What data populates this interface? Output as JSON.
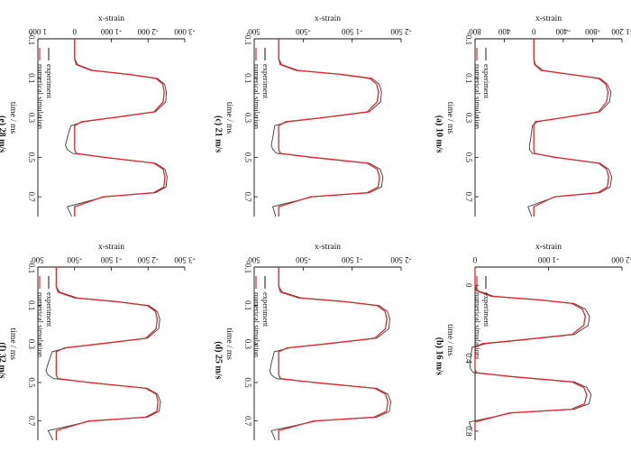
{
  "figure": {
    "colors": {
      "experiment": "#3a3a3a",
      "simulation": "#e0282e",
      "mesh": "#5a6fd0",
      "axis": "#111111"
    }
  },
  "chart_data": [
    {
      "type": "line",
      "caption": "(a) 10 m/s",
      "xlabel": "time / ms",
      "ylabel": "x-strain",
      "xlim": [
        -0.1,
        0.8
      ],
      "ylim": [
        -1200,
        800
      ],
      "xticks": [
        "-0.1",
        "0.1",
        "0.3",
        "0.5",
        "0.7"
      ],
      "xtickvals": [
        -0.1,
        0.1,
        0.3,
        0.5,
        0.7
      ],
      "yticks": [
        "-1 200",
        "-800",
        "-400",
        "0",
        "400",
        "800"
      ],
      "ytickvals": [
        -1200,
        -800,
        -400,
        0,
        400,
        800
      ],
      "legend": [
        "experiment",
        "numerical simulation"
      ],
      "legend_position": "top-right",
      "series": [
        {
          "name": "experiment",
          "role": "experiment",
          "x": [
            -0.1,
            0.0,
            0.03,
            0.06,
            0.08,
            0.1,
            0.13,
            0.17,
            0.22,
            0.27,
            0.3,
            0.32,
            0.34,
            0.4,
            0.44,
            0.46,
            0.48,
            0.5,
            0.53,
            0.56,
            0.6,
            0.65,
            0.68,
            0.7,
            0.75,
            0.8
          ],
          "y": [
            0,
            0,
            -20,
            -120,
            -500,
            -900,
            -1000,
            -1050,
            -1030,
            -900,
            -400,
            -50,
            20,
            40,
            60,
            60,
            20,
            -300,
            -900,
            -1020,
            -1060,
            -1040,
            -900,
            -300,
            80,
            30
          ]
        },
        {
          "name": "numerical simulation",
          "role": "simulation",
          "x": [
            -0.1,
            0.0,
            0.03,
            0.06,
            0.08,
            0.1,
            0.13,
            0.17,
            0.22,
            0.27,
            0.3,
            0.32,
            0.34,
            0.4,
            0.44,
            0.46,
            0.48,
            0.5,
            0.53,
            0.56,
            0.6,
            0.65,
            0.68,
            0.7,
            0.75,
            0.8
          ],
          "y": [
            0,
            0,
            -10,
            -100,
            -480,
            -880,
            -980,
            -1010,
            -990,
            -880,
            -380,
            -20,
            0,
            0,
            0,
            0,
            -10,
            -280,
            -880,
            -990,
            -1020,
            -1000,
            -870,
            -280,
            0,
            0
          ]
        }
      ]
    },
    {
      "type": "line",
      "caption": "(b) 16 m/s",
      "xlabel": "time / ms",
      "ylabel": "x-strain",
      "xlim": [
        -0.1,
        0.85
      ],
      "ylim": [
        -2000,
        0
      ],
      "xticks": [
        "0",
        "0.4",
        "0.8"
      ],
      "xtickvals": [
        0,
        0.4,
        0.8
      ],
      "yticks": [
        "-2 000",
        "-1 000",
        "0"
      ],
      "ytickvals": [
        -2000,
        -1000,
        0
      ],
      "legend": [
        "experiment",
        "numerical simulation"
      ],
      "legend_position": "top-right",
      "series": [
        {
          "name": "experiment",
          "role": "experiment",
          "x": [
            -0.1,
            0.0,
            0.03,
            0.06,
            0.08,
            0.1,
            0.13,
            0.17,
            0.22,
            0.27,
            0.3,
            0.32,
            0.34,
            0.4,
            0.44,
            0.46,
            0.48,
            0.5,
            0.53,
            0.56,
            0.6,
            0.65,
            0.68,
            0.7,
            0.75,
            0.8
          ],
          "y": [
            0,
            0,
            -40,
            -250,
            -900,
            -1350,
            -1500,
            -1560,
            -1540,
            -1350,
            -650,
            -150,
            40,
            60,
            70,
            60,
            20,
            -500,
            -1350,
            -1520,
            -1580,
            -1550,
            -1350,
            -500,
            80,
            40
          ]
        },
        {
          "name": "numerical simulation",
          "role": "simulation",
          "x": [
            -0.1,
            0.0,
            0.03,
            0.06,
            0.08,
            0.1,
            0.13,
            0.17,
            0.22,
            0.27,
            0.3,
            0.32,
            0.34,
            0.4,
            0.44,
            0.46,
            0.48,
            0.5,
            0.53,
            0.56,
            0.6,
            0.65,
            0.68,
            0.7,
            0.75,
            0.8
          ],
          "y": [
            0,
            0,
            -20,
            -220,
            -860,
            -1320,
            -1460,
            -1500,
            -1480,
            -1320,
            -620,
            -100,
            0,
            0,
            0,
            0,
            -20,
            -480,
            -1320,
            -1480,
            -1520,
            -1490,
            -1310,
            -470,
            0,
            0
          ]
        }
      ]
    },
    {
      "type": "line",
      "caption": "(c) 21 m/s",
      "xlabel": "time / ms",
      "ylabel": "x-strain",
      "xlim": [
        -0.1,
        0.8
      ],
      "ylim": [
        -2500,
        500
      ],
      "xticks": [
        "-0.1",
        "0.1",
        "0.3",
        "0.5",
        "0.7"
      ],
      "xtickvals": [
        -0.1,
        0.1,
        0.3,
        0.5,
        0.7
      ],
      "yticks": [
        "-2 500",
        "-1 500",
        "-500",
        "500"
      ],
      "ytickvals": [
        -2500,
        -1500,
        -500,
        500
      ],
      "legend": [
        "experiment",
        "numerical simulation"
      ],
      "legend_position": "top-right",
      "series": [
        {
          "name": "experiment",
          "role": "experiment",
          "x": [
            -0.1,
            0.0,
            0.03,
            0.06,
            0.08,
            0.1,
            0.13,
            0.17,
            0.22,
            0.27,
            0.3,
            0.32,
            0.34,
            0.4,
            0.44,
            0.46,
            0.48,
            0.5,
            0.53,
            0.56,
            0.6,
            0.65,
            0.68,
            0.7,
            0.75,
            0.8
          ],
          "y": [
            0,
            0,
            -60,
            -400,
            -1300,
            -1900,
            -2050,
            -2100,
            -2080,
            -1850,
            -900,
            -200,
            80,
            120,
            150,
            120,
            40,
            -700,
            -1850,
            -2070,
            -2130,
            -2100,
            -1850,
            -700,
            120,
            60
          ]
        },
        {
          "name": "numerical simulation",
          "role": "simulation",
          "x": [
            -0.1,
            0.0,
            0.03,
            0.06,
            0.08,
            0.1,
            0.13,
            0.17,
            0.22,
            0.27,
            0.3,
            0.32,
            0.34,
            0.4,
            0.44,
            0.46,
            0.48,
            0.5,
            0.53,
            0.56,
            0.6,
            0.65,
            0.68,
            0.7,
            0.75,
            0.8
          ],
          "y": [
            0,
            0,
            -30,
            -350,
            -1250,
            -1860,
            -2000,
            -2040,
            -2010,
            -1810,
            -860,
            -150,
            0,
            0,
            0,
            0,
            -30,
            -660,
            -1810,
            -2010,
            -2060,
            -2030,
            -1800,
            -650,
            0,
            0
          ]
        }
      ]
    },
    {
      "type": "line",
      "caption": "(d) 25 m/s",
      "xlabel": "time / ms",
      "ylabel": "x-strain",
      "xlim": [
        -0.1,
        0.8
      ],
      "ylim": [
        -2500,
        500
      ],
      "xticks": [
        "-0.1",
        "0.1",
        "0.3",
        "0.5",
        "0.7"
      ],
      "xtickvals": [
        -0.1,
        0.1,
        0.3,
        0.5,
        0.7
      ],
      "yticks": [
        "-2 500",
        "-1 500",
        "-500",
        "500"
      ],
      "ytickvals": [
        -2500,
        -1500,
        -500,
        500
      ],
      "legend": [
        "experiment",
        "numerical simulation"
      ],
      "legend_position": "top-right",
      "series": [
        {
          "name": "experiment",
          "role": "experiment",
          "x": [
            -0.1,
            0.0,
            0.03,
            0.06,
            0.08,
            0.1,
            0.13,
            0.17,
            0.22,
            0.27,
            0.3,
            0.32,
            0.34,
            0.4,
            0.44,
            0.46,
            0.48,
            0.5,
            0.53,
            0.56,
            0.6,
            0.65,
            0.68,
            0.7,
            0.75,
            0.8
          ],
          "y": [
            0,
            0,
            -70,
            -450,
            -1400,
            -2050,
            -2220,
            -2270,
            -2250,
            -2000,
            -980,
            -220,
            90,
            150,
            180,
            150,
            50,
            -760,
            -2000,
            -2230,
            -2290,
            -2260,
            -2000,
            -760,
            150,
            70
          ]
        },
        {
          "name": "numerical simulation",
          "role": "simulation",
          "x": [
            -0.1,
            0.0,
            0.03,
            0.06,
            0.08,
            0.1,
            0.13,
            0.17,
            0.22,
            0.27,
            0.3,
            0.32,
            0.34,
            0.4,
            0.44,
            0.46,
            0.48,
            0.5,
            0.53,
            0.56,
            0.6,
            0.65,
            0.68,
            0.7,
            0.75,
            0.8
          ],
          "y": [
            0,
            0,
            -35,
            -400,
            -1350,
            -2010,
            -2170,
            -2210,
            -2180,
            -1960,
            -930,
            -170,
            0,
            0,
            0,
            0,
            -35,
            -720,
            -1960,
            -2180,
            -2230,
            -2200,
            -1950,
            -710,
            0,
            0
          ]
        }
      ]
    },
    {
      "type": "line",
      "caption": "(e) 28 m/s",
      "xlabel": "time / ms",
      "ylabel": "x-strain",
      "xlim": [
        -0.1,
        0.8
      ],
      "ylim": [
        -3000,
        1000
      ],
      "xticks": [
        "-0.1",
        "0.1",
        "0.3",
        "0.5",
        "0.7"
      ],
      "xtickvals": [
        -0.1,
        0.1,
        0.3,
        0.5,
        0.7
      ],
      "yticks": [
        "-3 000",
        "-2 000",
        "-1 000",
        "0",
        "1 000"
      ],
      "ytickvals": [
        -3000,
        -2000,
        -1000,
        0,
        1000
      ],
      "legend": [
        "experiment",
        "numerical simulation"
      ],
      "legend_position": "top-right",
      "series": [
        {
          "name": "experiment",
          "role": "experiment",
          "x": [
            -0.1,
            0.0,
            0.03,
            0.06,
            0.08,
            0.1,
            0.13,
            0.17,
            0.22,
            0.27,
            0.3,
            0.32,
            0.34,
            0.4,
            0.44,
            0.46,
            0.48,
            0.5,
            0.53,
            0.56,
            0.6,
            0.65,
            0.68,
            0.7,
            0.75,
            0.8
          ],
          "y": [
            0,
            0,
            -80,
            -500,
            -1500,
            -2250,
            -2450,
            -2500,
            -2480,
            -2200,
            -1050,
            -250,
            100,
            200,
            250,
            200,
            60,
            -830,
            -2200,
            -2460,
            -2520,
            -2490,
            -2200,
            -830,
            200,
            80
          ]
        },
        {
          "name": "numerical simulation",
          "role": "simulation",
          "x": [
            -0.1,
            0.0,
            0.03,
            0.06,
            0.08,
            0.1,
            0.13,
            0.17,
            0.22,
            0.27,
            0.3,
            0.32,
            0.34,
            0.4,
            0.44,
            0.46,
            0.48,
            0.5,
            0.53,
            0.56,
            0.6,
            0.65,
            0.68,
            0.7,
            0.75,
            0.8
          ],
          "y": [
            0,
            0,
            -40,
            -450,
            -1450,
            -2210,
            -2400,
            -2440,
            -2410,
            -2160,
            -1000,
            -190,
            0,
            0,
            0,
            0,
            -40,
            -790,
            -2160,
            -2410,
            -2460,
            -2430,
            -2150,
            -780,
            0,
            0
          ]
        }
      ]
    },
    {
      "type": "line",
      "caption": "(f) 32 m/s",
      "xlabel": "time / ms",
      "ylabel": "x-strain",
      "xlim": [
        -0.1,
        0.8
      ],
      "ylim": [
        -3500,
        500
      ],
      "xticks": [
        "-0.1",
        "0.1",
        "0.3",
        "0.5",
        "0.7"
      ],
      "xtickvals": [
        -0.1,
        0.1,
        0.3,
        0.5,
        0.7
      ],
      "yticks": [
        "-3 500",
        "-2 500",
        "-1 500",
        "-500",
        "500"
      ],
      "ytickvals": [
        -3500,
        -2500,
        -1500,
        -500,
        500
      ],
      "legend": [
        "experiment",
        "numerical simulation"
      ],
      "legend_position": "top-right",
      "series": [
        {
          "name": "experiment",
          "role": "experiment",
          "x": [
            -0.1,
            0.0,
            0.03,
            0.06,
            0.08,
            0.1,
            0.13,
            0.17,
            0.22,
            0.27,
            0.3,
            0.32,
            0.34,
            0.4,
            0.44,
            0.46,
            0.48,
            0.5,
            0.53,
            0.56,
            0.6,
            0.65,
            0.68,
            0.7,
            0.75,
            0.8
          ],
          "y": [
            0,
            0,
            -90,
            -560,
            -1700,
            -2520,
            -2750,
            -2820,
            -2790,
            -2480,
            -1200,
            -280,
            110,
            220,
            280,
            220,
            70,
            -940,
            -2480,
            -2760,
            -2840,
            -2800,
            -2480,
            -940,
            220,
            90
          ]
        },
        {
          "name": "numerical simulation",
          "role": "simulation",
          "x": [
            -0.1,
            0.0,
            0.03,
            0.06,
            0.08,
            0.1,
            0.13,
            0.17,
            0.22,
            0.27,
            0.3,
            0.32,
            0.34,
            0.4,
            0.44,
            0.46,
            0.48,
            0.5,
            0.53,
            0.56,
            0.6,
            0.65,
            0.68,
            0.7,
            0.75,
            0.8
          ],
          "y": [
            0,
            0,
            -45,
            -500,
            -1640,
            -2480,
            -2700,
            -2750,
            -2720,
            -2440,
            -1140,
            -220,
            0,
            0,
            0,
            0,
            -45,
            -890,
            -2440,
            -2720,
            -2770,
            -2740,
            -2430,
            -880,
            0,
            0
          ]
        }
      ]
    }
  ]
}
